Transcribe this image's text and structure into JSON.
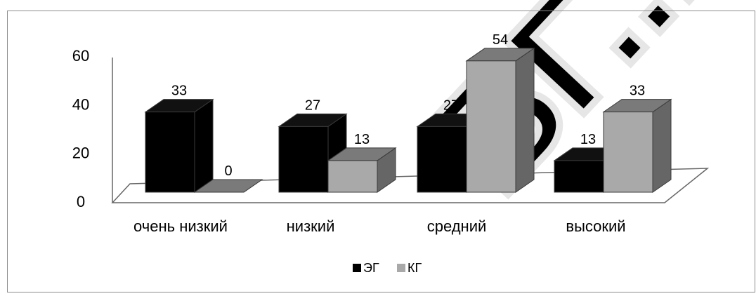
{
  "chart_data": {
    "type": "bar",
    "categories": [
      "очень низкий",
      "низкий",
      "средний",
      "высокий"
    ],
    "series": [
      {
        "name": "ЭГ",
        "values": [
          33,
          27,
          27,
          13
        ]
      },
      {
        "name": "КГ",
        "values": [
          0,
          13,
          54,
          33
        ]
      }
    ],
    "data_labels": [
      [
        "33",
        "27",
        "27",
        "13"
      ],
      [
        "0",
        "13",
        "54",
        "33"
      ]
    ],
    "yticks": [
      "0",
      "20",
      "40",
      "60"
    ],
    "ylim": [
      0,
      60
    ],
    "three_d": true,
    "grid": false,
    "legend_position": "bottom",
    "watermark": "БГ...",
    "colors": {
      "series_1_front": "#000000",
      "series_1_top": "#111111",
      "series_1_side": "#000000",
      "series_2_front": "#a9a9a9",
      "series_2_top": "#7a7a7a",
      "series_2_side": "#666666",
      "axis": "#666666",
      "frame": "#8c8c8c",
      "watermark": "#e6e6e6"
    }
  }
}
